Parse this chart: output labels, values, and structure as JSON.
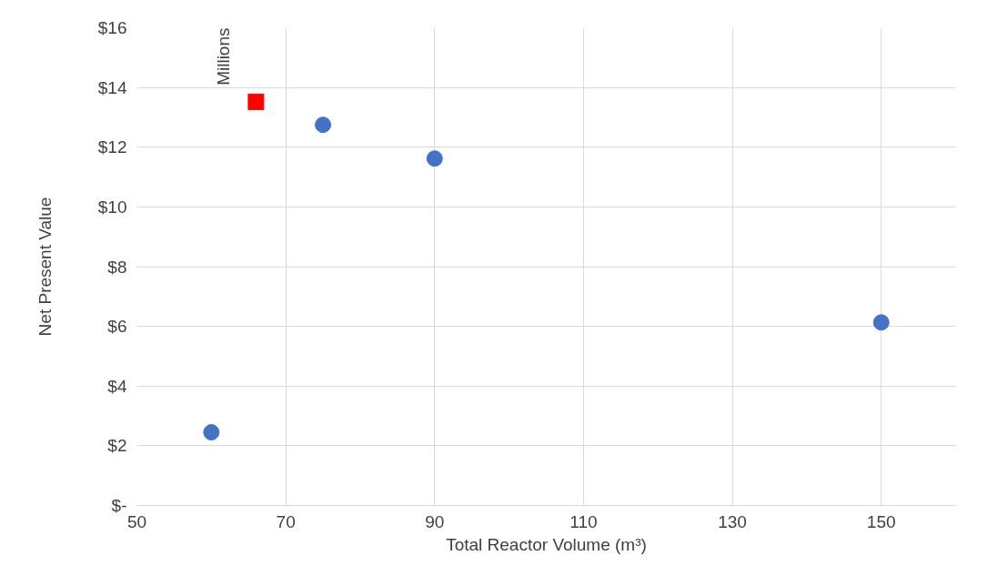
{
  "chart_data": {
    "type": "scatter",
    "xlabel": "Total Reactor Volume (m³)",
    "ylabel": "Net Present Value",
    "annotations": [
      "Millions"
    ],
    "series": [
      {
        "color": "#4472c4",
        "marker": "circle",
        "x": [
          60,
          75,
          90,
          150
        ],
        "values": [
          2.45,
          12.75,
          11.62,
          6.13
        ]
      },
      {
        "color": "#ff0000",
        "marker": "square",
        "x": [
          66
        ],
        "values": [
          13.52
        ]
      }
    ],
    "xlim": [
      50,
      160
    ],
    "xticks": [
      50,
      70,
      90,
      110,
      130,
      150
    ],
    "ylim": [
      0,
      16
    ],
    "yticks": [
      {
        "value": 0,
        "label": "$-"
      },
      {
        "value": 2,
        "label": "$2"
      },
      {
        "value": 4,
        "label": "$4"
      },
      {
        "value": 6,
        "label": "$6"
      },
      {
        "value": 8,
        "label": "$8"
      },
      {
        "value": 10,
        "label": "$10"
      },
      {
        "value": 12,
        "label": "$12"
      },
      {
        "value": 14,
        "label": "$14"
      },
      {
        "value": 16,
        "label": "$16"
      }
    ],
    "grid": true
  }
}
